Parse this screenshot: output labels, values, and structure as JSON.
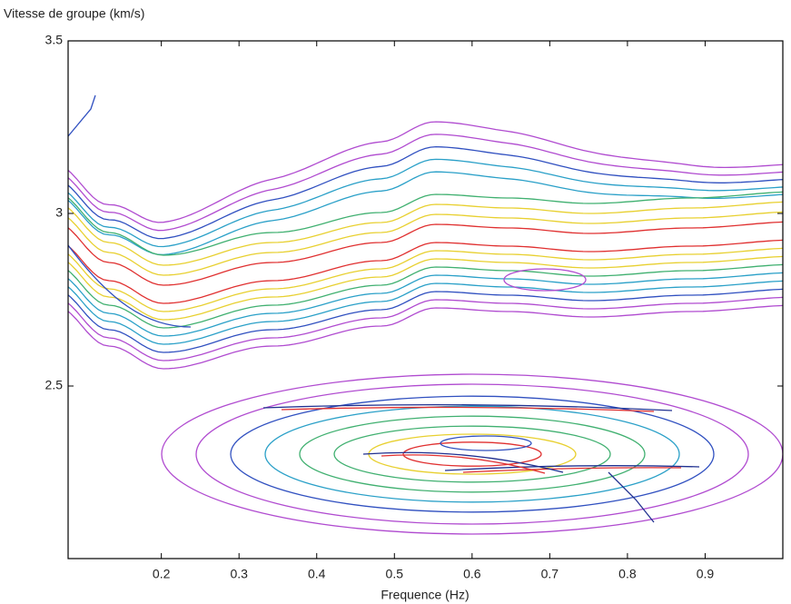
{
  "chart_data": {
    "type": "contour",
    "ylabel": "Vitesse de groupe (km/s)",
    "xlabel": "Frequence (Hz)",
    "xlim": [
      0.08,
      1.0
    ],
    "xticks": [
      0.2,
      0.3,
      0.4,
      0.5,
      0.6,
      0.7,
      0.8,
      0.9
    ],
    "ylim": [
      2.0,
      3.5
    ],
    "yticks": [
      2.5,
      3,
      3.5
    ]
  }
}
